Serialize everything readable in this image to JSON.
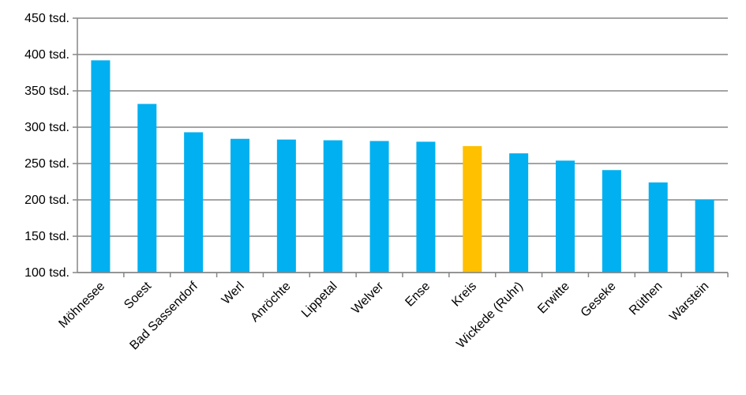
{
  "chart_data": {
    "type": "bar",
    "title": "",
    "xlabel": "",
    "ylabel": "",
    "ylim": [
      100,
      450
    ],
    "y_ticks": [
      {
        "value": 100,
        "label": "100 tsd."
      },
      {
        "value": 150,
        "label": "150 tsd."
      },
      {
        "value": 200,
        "label": "200 tsd."
      },
      {
        "value": 250,
        "label": "250 tsd."
      },
      {
        "value": 300,
        "label": "300 tsd."
      },
      {
        "value": 350,
        "label": "350 tsd."
      },
      {
        "value": 400,
        "label": "400 tsd."
      },
      {
        "value": 450,
        "label": "450 tsd."
      }
    ],
    "grid": true,
    "legend": "none",
    "categories": [
      "Möhnesee",
      "Soest",
      "Bad Sassendorf",
      "Werl",
      "Anröchte",
      "Lippetal",
      "Welver",
      "Ense",
      "Kreis",
      "Wickede (Ruhr)",
      "Erwitte",
      "Geseke",
      "Rüthen",
      "Warstein"
    ],
    "values": [
      392,
      332,
      293,
      284,
      283,
      282,
      281,
      280,
      274,
      264,
      254,
      241,
      224,
      200
    ],
    "bar_color": "#00B0F0",
    "highlight_color": "#FFC000",
    "highlight_category": "Kreis"
  }
}
